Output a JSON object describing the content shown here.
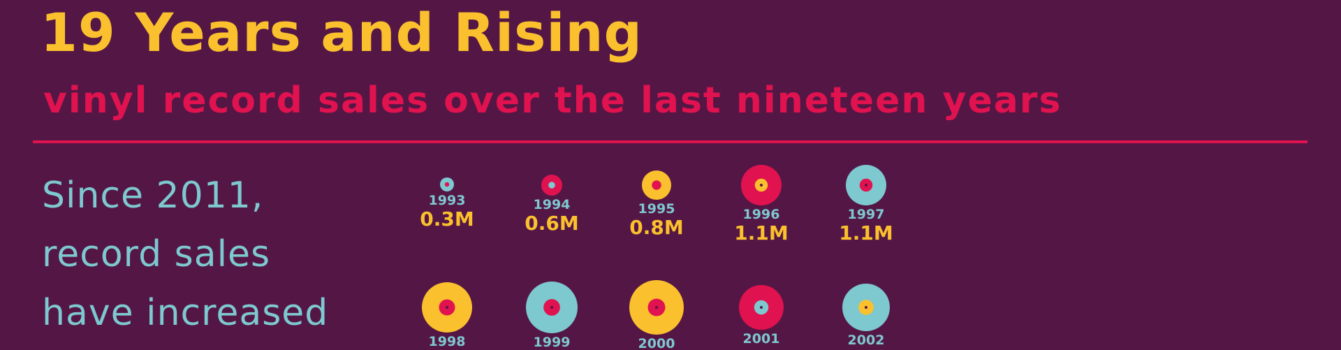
{
  "title": "19 Years and Rising",
  "subtitle": "vinyl record sales over the last nineteen years",
  "lede": "Since 2011, record sales have increased",
  "chart_data": {
    "type": "scatter",
    "encoding": "vinyl-disc size scales with sales",
    "unit": "M",
    "items": [
      {
        "year": "1993",
        "value": 0.3,
        "label": "0.3M",
        "disc": "#7ec8cf",
        "center": "#e0124f"
      },
      {
        "year": "1994",
        "value": 0.6,
        "label": "0.6M",
        "disc": "#e0124f",
        "center": "#7ec8cf"
      },
      {
        "year": "1995",
        "value": 0.8,
        "label": "0.8M",
        "disc": "#fbc02d",
        "center": "#e0124f"
      },
      {
        "year": "1996",
        "value": 1.1,
        "label": "1.1M",
        "disc": "#e0124f",
        "center": "#fbc02d"
      },
      {
        "year": "1997",
        "value": 1.1,
        "label": "1.1M",
        "disc": "#7ec8cf",
        "center": "#e0124f"
      },
      {
        "year": "1998",
        "value": null,
        "label": "",
        "disc": "#fbc02d",
        "center": "#e0124f"
      },
      {
        "year": "1999",
        "value": null,
        "label": "",
        "disc": "#7ec8cf",
        "center": "#e0124f"
      },
      {
        "year": "2000",
        "value": null,
        "label": "",
        "disc": "#fbc02d",
        "center": "#e0124f"
      },
      {
        "year": "2001",
        "value": null,
        "label": "",
        "disc": "#e0124f",
        "center": "#7ec8cf"
      },
      {
        "year": "2002",
        "value": null,
        "label": "",
        "disc": "#7ec8cf",
        "center": "#fbc02d"
      }
    ]
  },
  "colors": {
    "background": "#541745",
    "title": "#fbc02d",
    "accent": "#e0124f",
    "teal": "#7ec8cf",
    "year_label": "#7ec8cf",
    "value_label": "#fbc02d"
  }
}
